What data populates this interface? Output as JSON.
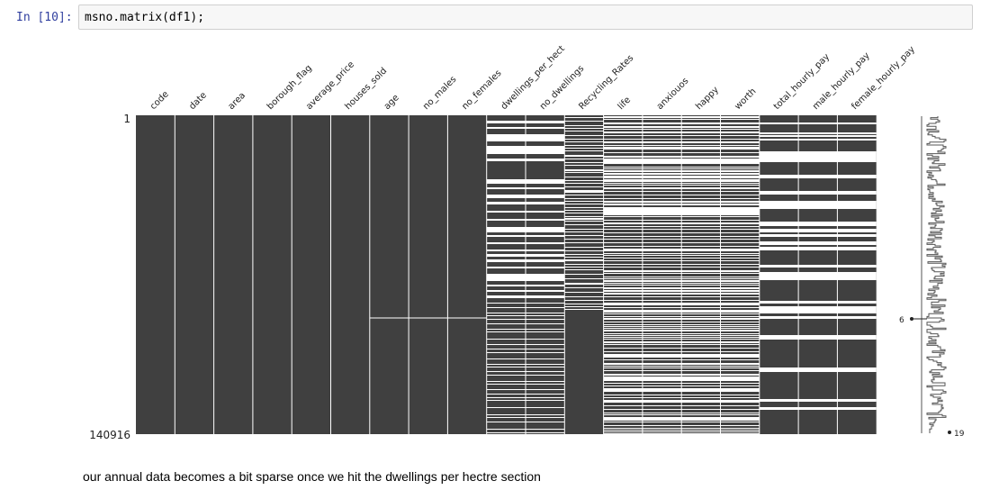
{
  "cell": {
    "prompt": "In [10]:",
    "code": "msno.matrix(df1);"
  },
  "chart_data": {
    "type": "heatmap",
    "columns": [
      "code",
      "date",
      "area",
      "borough_flag",
      "average_price",
      "houses_sold",
      "age",
      "no_males",
      "no_females",
      "dwellings_per_hect",
      "no_dwellings",
      "Recycling_Rates",
      "life",
      "anxiouos",
      "happy",
      "worth",
      "total_hourly_pay",
      "male_hourly_pay",
      "female_hourly_pay"
    ],
    "row_labels": {
      "top": "1",
      "bottom": "140916"
    },
    "rows": 140916,
    "sparkline_labels": {
      "min": "6",
      "max": "19"
    }
  },
  "markdown": {
    "text": "our annual data becomes a bit sparse once we hit the dwellings per hectre section"
  },
  "colors": {
    "filled": "#404040",
    "empty": "#ffffff",
    "prompt": "#303f9f"
  }
}
